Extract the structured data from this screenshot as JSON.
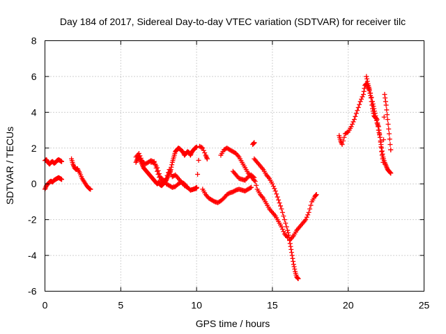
{
  "chart_data": {
    "type": "scatter",
    "title": "Day 184 of 2017, Sidereal Day-to-day VTEC variation (SDTVAR) for receiver tilc",
    "xlabel": "GPS time / hours",
    "ylabel": "SDTVAR / TECUs",
    "xlim": [
      0,
      25
    ],
    "ylim": [
      -6,
      8
    ],
    "xticks": [
      "0",
      "5",
      "10",
      "15",
      "20",
      "25"
    ],
    "yticks": [
      "-6",
      "-4",
      "-2",
      "0",
      "2",
      "4",
      "6",
      "8"
    ],
    "grid": true,
    "marker": "+",
    "color": "#ff0000",
    "series": [
      {
        "name": "seg-a-upper",
        "x": [
          0.0,
          0.1,
          0.2,
          0.3,
          0.4,
          0.5,
          0.6,
          0.7,
          0.8,
          0.9,
          1.0,
          1.1
        ],
        "y": [
          1.3,
          1.35,
          1.2,
          1.1,
          1.2,
          1.25,
          1.15,
          1.2,
          1.3,
          1.35,
          1.3,
          1.25
        ]
      },
      {
        "name": "seg-a-lower",
        "x": [
          0.0,
          0.1,
          0.2,
          0.3,
          0.4,
          0.5,
          0.6,
          0.7,
          0.8,
          0.9,
          1.0,
          1.1
        ],
        "y": [
          -0.3,
          -0.1,
          0.0,
          0.1,
          0.15,
          0.1,
          0.2,
          0.25,
          0.3,
          0.35,
          0.3,
          0.25
        ]
      },
      {
        "name": "seg-b",
        "x": [
          1.75,
          1.85,
          1.95,
          2.05,
          2.15,
          2.3,
          2.45,
          2.6,
          2.75,
          2.9,
          3.0
        ],
        "y": [
          1.4,
          1.1,
          0.9,
          0.8,
          0.85,
          0.6,
          0.3,
          0.1,
          -0.1,
          -0.25,
          -0.3
        ]
      },
      {
        "name": "seg-c-1",
        "x": [
          6.0,
          6.1,
          6.2,
          6.3,
          6.4,
          6.5,
          6.6,
          6.7,
          6.8,
          6.9,
          7.0,
          7.1,
          7.2,
          7.3,
          7.4,
          7.5,
          7.6,
          7.7,
          7.8,
          7.9,
          8.0,
          8.1,
          8.2,
          8.3,
          8.4,
          8.5,
          8.6,
          8.7,
          8.8,
          8.9,
          9.0,
          9.1,
          9.2,
          9.3,
          9.4,
          9.5,
          9.6,
          9.7,
          9.8,
          9.9,
          10.0
        ],
        "y": [
          1.2,
          1.4,
          1.5,
          1.3,
          1.1,
          0.9,
          0.8,
          0.7,
          0.6,
          0.5,
          0.4,
          0.3,
          0.2,
          0.1,
          0.0,
          0.05,
          -0.05,
          -0.1,
          0.0,
          0.1,
          0.2,
          0.4,
          0.6,
          0.8,
          1.2,
          1.5,
          1.8,
          1.9,
          2.0,
          1.95,
          1.85,
          1.8,
          1.6,
          1.7,
          1.8,
          1.75,
          1.6,
          1.8,
          1.9,
          2.0,
          2.05
        ]
      },
      {
        "name": "seg-c-2",
        "x": [
          6.0,
          6.2,
          6.4,
          6.6,
          6.8,
          7.0,
          7.2,
          7.4,
          7.6,
          7.8,
          8.0,
          8.2,
          8.4,
          8.6,
          8.8,
          9.0,
          9.2,
          9.4,
          9.6,
          9.8,
          10.0
        ],
        "y": [
          1.5,
          1.7,
          1.3,
          1.1,
          1.2,
          1.3,
          1.2,
          0.9,
          0.4,
          0.2,
          0.0,
          -0.1,
          -0.2,
          -0.15,
          0.0,
          0.1,
          -0.1,
          -0.2,
          -0.35,
          -0.3,
          -0.2
        ]
      },
      {
        "name": "seg-c-3",
        "x": [
          7.0,
          7.2,
          7.4,
          7.6,
          7.8,
          8.0,
          8.2,
          8.4,
          8.6,
          8.8,
          9.0,
          9.2,
          9.4,
          9.6,
          9.8,
          10.0,
          10.2,
          10.4,
          10.6,
          10.7
        ],
        "y": [
          1.2,
          1.25,
          0.7,
          0.2,
          0.0,
          0.3,
          0.8,
          0.4,
          0.5,
          0.3,
          0.1,
          0.0,
          -0.2,
          -0.35,
          -0.3,
          -0.25,
          2.1,
          2.0,
          1.6,
          1.4
        ]
      },
      {
        "name": "seg-d",
        "x": [
          10.4,
          10.6,
          10.8,
          11.0,
          11.2,
          11.4,
          11.6,
          11.8,
          12.0,
          12.2,
          12.4,
          12.6,
          12.8,
          13.0,
          13.2,
          13.4,
          13.6
        ],
        "y": [
          -0.3,
          -0.6,
          -0.8,
          -0.9,
          -1.0,
          -1.05,
          -0.95,
          -0.8,
          -0.6,
          -0.5,
          -0.45,
          -0.35,
          -0.3,
          -0.35,
          -0.4,
          -0.3,
          -0.2
        ]
      },
      {
        "name": "seg-e",
        "x": [
          11.6,
          11.8,
          12.0,
          12.2,
          12.4,
          12.6,
          12.8,
          13.0,
          13.2,
          13.4,
          13.6,
          13.8
        ],
        "y": [
          1.6,
          1.9,
          2.0,
          1.9,
          1.8,
          1.7,
          1.5,
          1.2,
          0.9,
          0.6,
          0.4,
          0.2
        ]
      },
      {
        "name": "seg-f",
        "x": [
          12.4,
          12.6,
          12.8,
          13.0,
          13.2,
          13.4,
          13.6,
          13.8,
          14.0,
          14.2,
          14.4,
          14.6,
          14.8,
          15.0,
          15.2,
          15.4,
          15.6,
          15.8,
          16.0
        ],
        "y": [
          0.7,
          0.5,
          0.3,
          0.25,
          0.2,
          0.4,
          0.5,
          0.35,
          -0.3,
          -0.6,
          -0.8,
          -1.1,
          -1.4,
          -1.6,
          -1.8,
          -2.1,
          -2.4,
          -2.8,
          -3.0
        ]
      },
      {
        "name": "seg-g",
        "x": [
          13.8,
          14.0,
          14.2,
          14.4,
          14.6,
          14.8,
          15.0,
          15.2,
          15.4,
          15.6,
          15.8,
          16.0,
          16.1,
          16.2,
          16.3,
          16.4,
          16.5,
          16.6,
          16.7
        ],
        "y": [
          1.4,
          1.2,
          1.0,
          0.8,
          0.5,
          0.3,
          0.0,
          -0.4,
          -0.9,
          -1.4,
          -2.0,
          -2.6,
          -3.0,
          -3.5,
          -4.0,
          -4.5,
          -4.9,
          -5.2,
          -5.3
        ]
      },
      {
        "name": "seg-h",
        "x": [
          16.2,
          16.4,
          16.6,
          16.8,
          17.0,
          17.2,
          17.4,
          17.6,
          17.8,
          17.9
        ],
        "y": [
          -3.1,
          -2.9,
          -2.6,
          -2.4,
          -2.2,
          -2.0,
          -1.6,
          -1.0,
          -0.7,
          -0.6
        ]
      },
      {
        "name": "seg-i",
        "x": [
          13.7,
          13.8
        ],
        "y": [
          2.2,
          2.3
        ]
      },
      {
        "name": "seg-j",
        "x": [
          19.4,
          19.5,
          19.6,
          19.8,
          20.0,
          20.2,
          20.4,
          20.6,
          20.8,
          21.0,
          21.1,
          21.2,
          21.3,
          21.4,
          21.5,
          21.6,
          21.7,
          21.8,
          21.9,
          22.0,
          22.1,
          22.2,
          22.3,
          22.4,
          22.5,
          22.6,
          22.7,
          22.8
        ],
        "y": [
          2.7,
          2.4,
          2.2,
          2.8,
          2.9,
          3.2,
          3.6,
          4.1,
          4.6,
          5.0,
          5.5,
          5.6,
          5.4,
          5.2,
          4.8,
          4.2,
          3.8,
          3.7,
          3.6,
          3.0,
          2.6,
          2.0,
          1.5,
          1.2,
          1.0,
          0.8,
          0.7,
          0.6
        ]
      },
      {
        "name": "seg-k",
        "x": [
          21.2,
          21.3,
          21.4,
          21.6,
          21.7,
          21.8,
          21.9,
          22.0,
          22.1,
          22.2,
          22.3,
          22.4,
          22.5,
          22.6,
          22.7,
          22.8
        ],
        "y": [
          6.0,
          5.6,
          5.3,
          4.6,
          4.2,
          3.8,
          3.4,
          3.2,
          2.6,
          1.8,
          1.2,
          5.0,
          4.4,
          3.6,
          2.8,
          1.9
        ]
      }
    ]
  }
}
